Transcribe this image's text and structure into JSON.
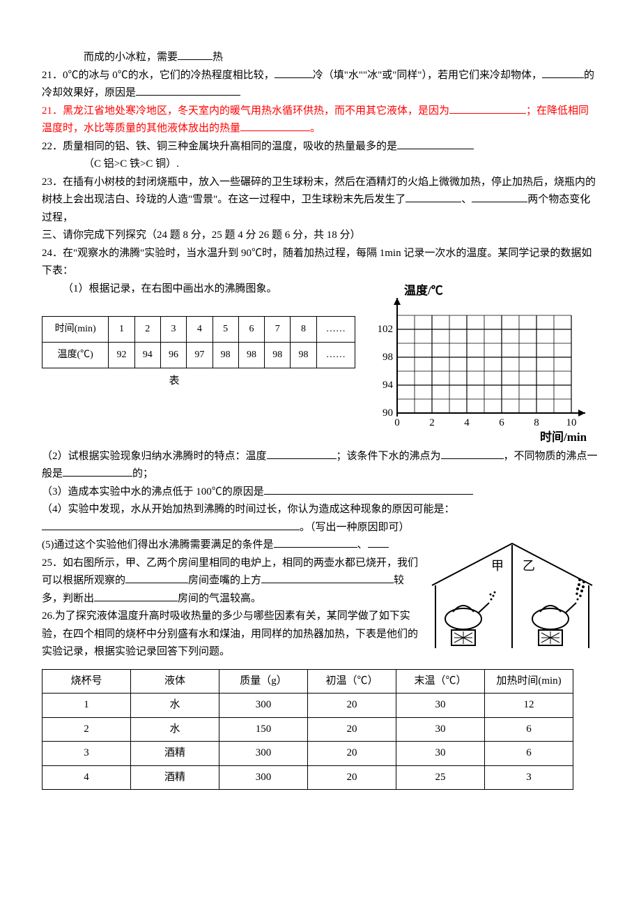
{
  "q20_tail": {
    "a": "而成的小冰粒，需要",
    "b": "热"
  },
  "q21a": {
    "a": "21．0℃的冰与 0℃的水，它们的冷热程度相比较，",
    "b": "冷（填\"水\"\"冰\"或\"同样\"），若用它们来冷却物体，",
    "c": "的冷却效果好，原因是"
  },
  "q21b": {
    "a": "21．黑龙江省地处寒冷地区，冬天室内的暖气用热水循环供热，而不用其它液体，是因为",
    "b": "；在降低相同温度时，水比等质量的其他液体放出的热量",
    "c": "。"
  },
  "q22": {
    "a": "22．质量相同的铝、铁、铜三种金属块升高相同的温度，吸收的热量最多的是",
    "note": "（C 铝>C 铁>C 铜）."
  },
  "q23": {
    "a": "23．在插有小树枝的封闭烧瓶中，放入一些碾碎的卫生球粉末，然后在酒精灯的火焰上微微加热，停止加热后，烧瓶内的树枝上会出现洁白、玲珑的人造\"雪景\"。在这一过程中，卫生球粉末先后发生了",
    "b": "、",
    "c": "两个物态变化过程，"
  },
  "section3": "三、请你完成下列探究（24 题 8 分，25 题 4 分 26 题 6 分，共 18 分）",
  "q24_intro": "24．在\"观察水的沸腾\"实验时，当水温升到 90℃时，随着加热过程，每隔 1min 记录一次水的温度。某同学记录的数据如下表：",
  "q24_1": "（1）根据记录，在右图中画出水的沸腾图象。",
  "time_table": {
    "row1_label": "时间(min)",
    "row2_label": "温度(℃)",
    "cols": [
      "1",
      "2",
      "3",
      "4",
      "5",
      "6",
      "7",
      "8",
      "……"
    ],
    "vals": [
      "92",
      "94",
      "96",
      "97",
      "98",
      "98",
      "98",
      "98",
      "……"
    ],
    "caption": "表"
  },
  "chart": {
    "ylabel": "温度/℃",
    "xlabel": "时间/min",
    "yticks": [
      "102",
      "98",
      "94",
      "90"
    ],
    "xticks": [
      "0",
      "2",
      "4",
      "6",
      "8",
      "10"
    ],
    "grid_cols": 10,
    "grid_rows": 7,
    "background_color": "#ffffff",
    "grid_color": "#000000",
    "axis_color": "#000000"
  },
  "q24_2": {
    "a": "（2）试根据实验现象归纳水沸腾时的特点：温度",
    "b": "；该条件下水的沸点为",
    "c": "，不同物质的沸点一般是",
    "d": "的；"
  },
  "q24_3": "（3）造成本实验中水的沸点低于 100℃的原因是",
  "q24_4": {
    "a": "（4）实验中发现，水从开始加热到沸腾的时间过长，你认为造成这种现象的原因可能是：",
    "b": "。（写出一种原因即可）"
  },
  "q24_5": {
    "a": "(5)通过这个实验他们得出水沸腾需要满足的条件是",
    "b": "、"
  },
  "q25": {
    "a": "25．如右图所示，甲、乙两个房间里相同的电炉上，相同的两壶水都已烧开，我们可以根据所观察的",
    "b": "房间壶嘴的上方",
    "c": "较多，判断出",
    "d": "房间的气温较高。"
  },
  "house": {
    "left_label": "甲",
    "right_label": "乙"
  },
  "q26_intro": "26.为了探究液体温度升高时吸收热量的多少与哪些因素有关，某同学做了如下实验，在四个相同的烧杯中分别盛有水和煤油，用同样的加热器加热，下表是他们的实验记录，根据实验记录回答下列问题。",
  "data_table": {
    "headers": [
      "烧杯号",
      "液体",
      "质量（g）",
      "初温（℃）",
      "末温（℃）",
      "加热时间(min)"
    ],
    "rows": [
      [
        "1",
        "水",
        "300",
        "20",
        "30",
        "12"
      ],
      [
        "2",
        "水",
        "150",
        "20",
        "30",
        "6"
      ],
      [
        "3",
        "酒精",
        "300",
        "20",
        "30",
        "6"
      ],
      [
        "4",
        "酒精",
        "300",
        "20",
        "25",
        "3"
      ]
    ]
  }
}
